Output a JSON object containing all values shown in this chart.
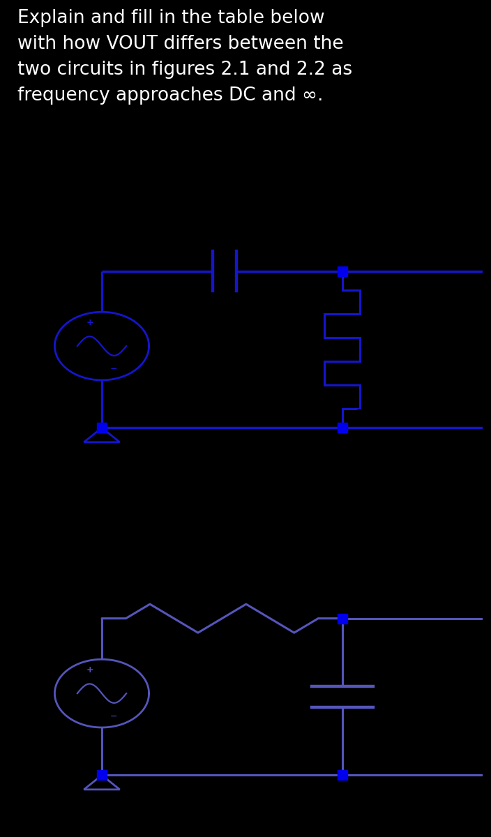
{
  "bg_color": "#000000",
  "circuit_bg": "#ffffff",
  "title_text": "Explain and fill in the table below\nwith how VOUT differs between the\ntwo circuits in figures 2.1 and 2.2 as\nfrequency approaches DC and ∞.",
  "title_color": "#ffffff",
  "title_fontsize": 19,
  "lc1": "#1515cc",
  "lc2": "#5555bb",
  "node_color": "#0000ee",
  "label_color": "#000000",
  "vout_fontsize": 20,
  "vin_fontsize": 19,
  "plusminus_fontsize": 16
}
